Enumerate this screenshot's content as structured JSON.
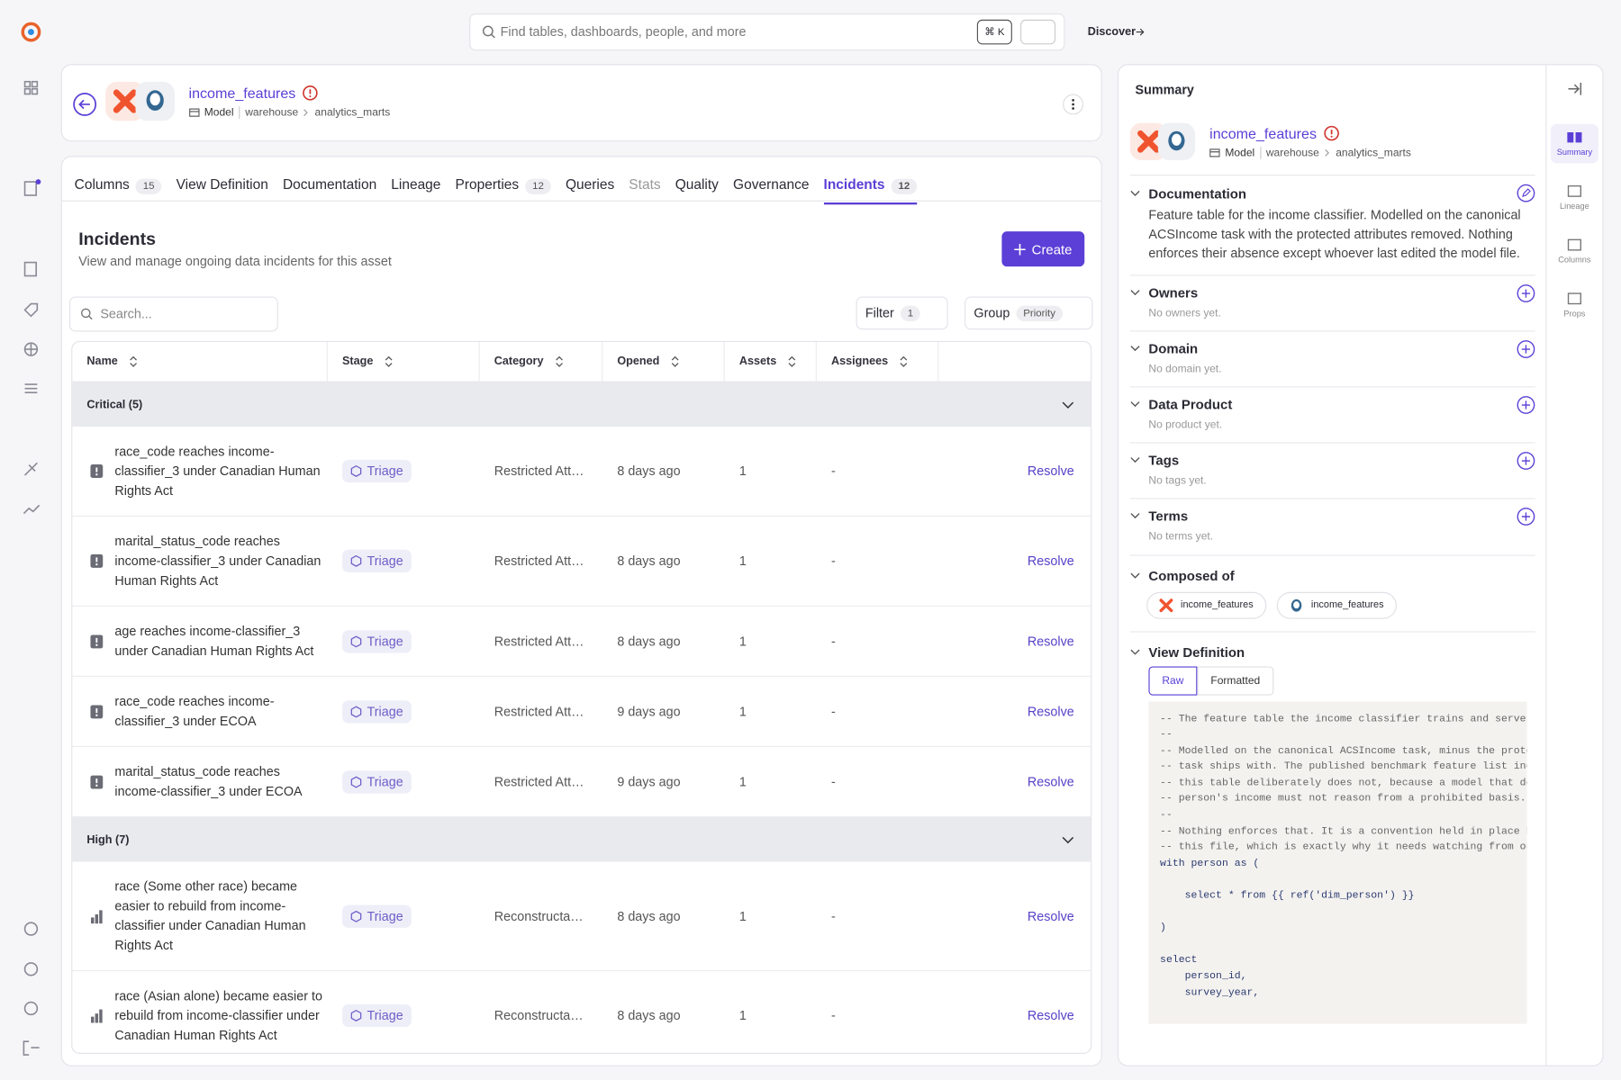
{
  "search": {
    "placeholder": "Find tables, dashboards, people, and more",
    "shortcut": "⌘ K",
    "discover": "Discover"
  },
  "asset": {
    "name": "income_features",
    "type": "Model",
    "path": [
      "warehouse",
      "analytics_marts"
    ]
  },
  "tabs": [
    {
      "label": "Columns",
      "count": 15
    },
    {
      "label": "View Definition"
    },
    {
      "label": "Documentation"
    },
    {
      "label": "Lineage"
    },
    {
      "label": "Properties",
      "count": 12
    },
    {
      "label": "Queries"
    },
    {
      "label": "Stats",
      "disabled": true
    },
    {
      "label": "Quality"
    },
    {
      "label": "Governance"
    },
    {
      "label": "Incidents",
      "count": 12,
      "active": true
    }
  ],
  "incidents": {
    "title": "Incidents",
    "subtitle": "View and manage ongoing data incidents for this asset",
    "create": "Create",
    "search_placeholder": "Search...",
    "filter": {
      "label": "Filter",
      "count": 1
    },
    "group": {
      "label": "Group",
      "value": "Priority"
    },
    "columns": [
      "Name",
      "Stage",
      "Category",
      "Opened",
      "Assets",
      "Assignees"
    ],
    "groups": [
      {
        "label": "Critical (5)",
        "icon": "critical",
        "rows": [
          {
            "name": "race_code reaches income-classifier_3 under Canadian Human Rights Act",
            "stage": "Triage",
            "category": "Restricted Att…",
            "opened": "8 days ago",
            "assets": 1,
            "assignees": "-",
            "action": "Resolve"
          },
          {
            "name": "marital_status_code reaches income-classifier_3 under Canadian Human Rights Act",
            "stage": "Triage",
            "category": "Restricted Att…",
            "opened": "8 days ago",
            "assets": 1,
            "assignees": "-",
            "action": "Resolve"
          },
          {
            "name": "age reaches income-classifier_3 under Canadian Human Rights Act",
            "stage": "Triage",
            "category": "Restricted Att…",
            "opened": "8 days ago",
            "assets": 1,
            "assignees": "-",
            "action": "Resolve"
          },
          {
            "name": "race_code reaches income-classifier_3 under ECOA",
            "stage": "Triage",
            "category": "Restricted Att…",
            "opened": "9 days ago",
            "assets": 1,
            "assignees": "-",
            "action": "Resolve"
          },
          {
            "name": "marital_status_code reaches income-classifier_3 under ECOA",
            "stage": "Triage",
            "category": "Restricted Att…",
            "opened": "9 days ago",
            "assets": 1,
            "assignees": "-",
            "action": "Resolve"
          }
        ]
      },
      {
        "label": "High (7)",
        "icon": "high",
        "rows": [
          {
            "name": "race (Some other race) became easier to rebuild from income-classifier under Canadian Human Rights Act",
            "stage": "Triage",
            "category": "Reconstructa…",
            "opened": "8 days ago",
            "assets": 1,
            "assignees": "-",
            "action": "Resolve"
          },
          {
            "name": "race (Asian alone) became easier to rebuild from income-classifier under Canadian Human Rights Act",
            "stage": "Triage",
            "category": "Reconstructa…",
            "opened": "8 days ago",
            "assets": 1,
            "assignees": "-",
            "action": "Resolve"
          }
        ]
      }
    ]
  },
  "summary": {
    "title": "Summary",
    "documentation": {
      "title": "Documentation",
      "text": "Feature table for the income classifier. Modelled on the canonical ACSIncome task with the protected attributes removed. Nothing enforces their absence except whoever last edited the model file."
    },
    "sections": [
      {
        "title": "Owners",
        "empty": "No owners yet."
      },
      {
        "title": "Domain",
        "empty": "No domain yet."
      },
      {
        "title": "Data Product",
        "empty": "No product yet."
      },
      {
        "title": "Tags",
        "empty": "No tags yet."
      },
      {
        "title": "Terms",
        "empty": "No terms yet."
      }
    ],
    "composed_of": {
      "title": "Composed of",
      "items": [
        "income_features",
        "income_features"
      ]
    },
    "view_definition": {
      "title": "View Definition",
      "modes": [
        "Raw",
        "Formatted"
      ],
      "code": [
        "-- The feature table the income classifier trains and serves o",
        "--",
        "-- Modelled on the canonical ACSIncome task, minus the protect",
        "-- task ships with. The published benchmark feature list inclu",
        "-- this table deliberately does not, because a model that deci",
        "-- person's income must not reason from a prohibited basis.",
        "--",
        "-- Nothing enforces that. It is a convention held in place by",
        "-- this file, which is exactly why it needs watching from outs",
        "with person as (",
        null,
        "    select * from {{ ref('dim_person') }}",
        null,
        ")",
        null,
        "select",
        "    person_id,",
        "    survey_year,"
      ]
    }
  },
  "rail": [
    "Summary",
    "Lineage",
    "Columns",
    "Props"
  ]
}
